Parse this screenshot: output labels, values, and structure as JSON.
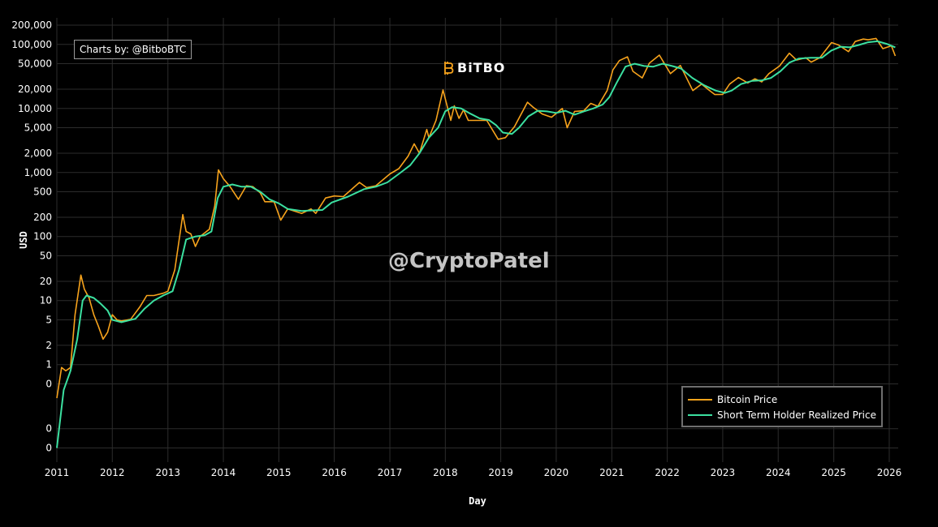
{
  "credit": "Charts by: @BitboBTC",
  "brand": "BiTBO",
  "watermark": "@CryptoPatel",
  "colors": {
    "bitcoin": "#f7a31c",
    "sth": "#3be0a0",
    "grid": "#2c2c2c",
    "background": "#000000"
  },
  "chart_data": {
    "type": "line",
    "xlabel": "Day",
    "ylabel": "USD",
    "yscale": "log",
    "grid": true,
    "legend_placement": "bottom-right",
    "x_ticks": [
      "2011",
      "2012",
      "2013",
      "2014",
      "2015",
      "2016",
      "2017",
      "2018",
      "2019",
      "2020",
      "2021",
      "2022",
      "2023",
      "2024",
      "2025",
      "2026"
    ],
    "y_ticks": [
      {
        "value": 0.05,
        "label": "0"
      },
      {
        "value": 0.1,
        "label": "0"
      },
      {
        "value": 0.5,
        "label": "0"
      },
      {
        "value": 1,
        "label": "1"
      },
      {
        "value": 2,
        "label": "2"
      },
      {
        "value": 5,
        "label": "5"
      },
      {
        "value": 10,
        "label": "10"
      },
      {
        "value": 20,
        "label": "20"
      },
      {
        "value": 50,
        "label": "50"
      },
      {
        "value": 100,
        "label": "100"
      },
      {
        "value": 200,
        "label": "200"
      },
      {
        "value": 500,
        "label": "500"
      },
      {
        "value": 1000,
        "label": "1,000"
      },
      {
        "value": 2000,
        "label": "2,000"
      },
      {
        "value": 5000,
        "label": "5,000"
      },
      {
        "value": 10000,
        "label": "10,000"
      },
      {
        "value": 20000,
        "label": "20,000"
      },
      {
        "value": 50000,
        "label": "50,000"
      },
      {
        "value": 100000,
        "label": "100,000"
      },
      {
        "value": 200000,
        "label": "200,000"
      }
    ],
    "xlim": [
      "2011-01-01",
      "2026-03-01"
    ],
    "series": [
      {
        "name": "Bitcoin Price",
        "color": "#f7a31c",
        "points": [
          [
            "2011-01-01",
            0.3
          ],
          [
            "2011-02-01",
            0.9
          ],
          [
            "2011-03-01",
            0.8
          ],
          [
            "2011-04-01",
            0.9
          ],
          [
            "2011-05-01",
            6
          ],
          [
            "2011-06-08",
            25
          ],
          [
            "2011-07-01",
            15
          ],
          [
            "2011-08-01",
            11
          ],
          [
            "2011-09-01",
            6
          ],
          [
            "2011-10-01",
            4
          ],
          [
            "2011-11-01",
            2.5
          ],
          [
            "2011-12-01",
            3.2
          ],
          [
            "2012-01-01",
            6
          ],
          [
            "2012-02-01",
            5
          ],
          [
            "2012-03-01",
            4.8
          ],
          [
            "2012-05-01",
            5.1
          ],
          [
            "2012-07-01",
            8
          ],
          [
            "2012-08-15",
            12
          ],
          [
            "2012-10-01",
            12
          ],
          [
            "2012-12-01",
            13
          ],
          [
            "2013-01-01",
            14
          ],
          [
            "2013-02-15",
            30
          ],
          [
            "2013-04-09",
            220
          ],
          [
            "2013-05-01",
            120
          ],
          [
            "2013-06-01",
            110
          ],
          [
            "2013-07-01",
            70
          ],
          [
            "2013-08-01",
            100
          ],
          [
            "2013-10-01",
            130
          ],
          [
            "2013-11-05",
            300
          ],
          [
            "2013-11-30",
            1100
          ],
          [
            "2014-01-01",
            800
          ],
          [
            "2014-02-15",
            600
          ],
          [
            "2014-04-10",
            380
          ],
          [
            "2014-06-01",
            620
          ],
          [
            "2014-07-15",
            600
          ],
          [
            "2014-09-01",
            480
          ],
          [
            "2014-10-01",
            350
          ],
          [
            "2014-12-01",
            350
          ],
          [
            "2015-01-14",
            180
          ],
          [
            "2015-03-01",
            270
          ],
          [
            "2015-06-01",
            230
          ],
          [
            "2015-08-01",
            270
          ],
          [
            "2015-09-01",
            230
          ],
          [
            "2015-11-05",
            400
          ],
          [
            "2016-01-01",
            430
          ],
          [
            "2016-03-01",
            420
          ],
          [
            "2016-06-15",
            700
          ],
          [
            "2016-08-01",
            580
          ],
          [
            "2016-10-01",
            620
          ],
          [
            "2017-01-01",
            950
          ],
          [
            "2017-03-01",
            1150
          ],
          [
            "2017-05-01",
            1800
          ],
          [
            "2017-06-10",
            2800
          ],
          [
            "2017-07-15",
            2000
          ],
          [
            "2017-09-01",
            4700
          ],
          [
            "2017-09-15",
            3500
          ],
          [
            "2017-11-01",
            6500
          ],
          [
            "2017-12-17",
            19500
          ],
          [
            "2018-02-06",
            6500
          ],
          [
            "2018-03-01",
            11000
          ],
          [
            "2018-04-01",
            7000
          ],
          [
            "2018-05-01",
            9500
          ],
          [
            "2018-06-01",
            6500
          ],
          [
            "2018-08-01",
            6500
          ],
          [
            "2018-10-01",
            6500
          ],
          [
            "2018-12-15",
            3300
          ],
          [
            "2019-02-01",
            3500
          ],
          [
            "2019-04-01",
            5200
          ],
          [
            "2019-06-26",
            12500
          ],
          [
            "2019-08-01",
            10500
          ],
          [
            "2019-10-01",
            8200
          ],
          [
            "2019-12-01",
            7300
          ],
          [
            "2020-02-10",
            10000
          ],
          [
            "2020-03-13",
            5000
          ],
          [
            "2020-05-01",
            9000
          ],
          [
            "2020-07-01",
            9200
          ],
          [
            "2020-08-15",
            12000
          ],
          [
            "2020-10-01",
            10800
          ],
          [
            "2020-12-01",
            19000
          ],
          [
            "2021-01-08",
            40000
          ],
          [
            "2021-02-20",
            56000
          ],
          [
            "2021-04-14",
            64000
          ],
          [
            "2021-05-20",
            38000
          ],
          [
            "2021-07-20",
            30000
          ],
          [
            "2021-09-05",
            51000
          ],
          [
            "2021-11-10",
            68000
          ],
          [
            "2022-01-22",
            35000
          ],
          [
            "2022-03-28",
            47000
          ],
          [
            "2022-06-18",
            19000
          ],
          [
            "2022-08-15",
            24000
          ],
          [
            "2022-10-01",
            19500
          ],
          [
            "2022-11-10",
            16500
          ],
          [
            "2023-01-01",
            16600
          ],
          [
            "2023-02-15",
            24000
          ],
          [
            "2023-04-14",
            30400
          ],
          [
            "2023-06-15",
            25000
          ],
          [
            "2023-08-01",
            29000
          ],
          [
            "2023-09-15",
            26000
          ],
          [
            "2023-11-01",
            35000
          ],
          [
            "2024-01-10",
            46000
          ],
          [
            "2024-03-14",
            73000
          ],
          [
            "2024-05-01",
            57000
          ],
          [
            "2024-07-01",
            62000
          ],
          [
            "2024-08-05",
            53000
          ],
          [
            "2024-10-01",
            62000
          ],
          [
            "2024-12-17",
            107000
          ],
          [
            "2025-02-01",
            98000
          ],
          [
            "2025-04-08",
            77000
          ],
          [
            "2025-05-22",
            111000
          ],
          [
            "2025-07-14",
            121000
          ],
          [
            "2025-08-15",
            118000
          ],
          [
            "2025-10-06",
            124000
          ],
          [
            "2025-11-20",
            86000
          ],
          [
            "2026-01-15",
            95000
          ],
          [
            "2026-02-10",
            66000
          ]
        ]
      },
      {
        "name": "Short Term Holder Realized Price",
        "color": "#3be0a0",
        "points": [
          [
            "2011-01-01",
            0.05
          ],
          [
            "2011-02-15",
            0.4
          ],
          [
            "2011-04-01",
            0.8
          ],
          [
            "2011-05-15",
            2.5
          ],
          [
            "2011-06-20",
            10
          ],
          [
            "2011-07-15",
            12
          ],
          [
            "2011-09-01",
            11
          ],
          [
            "2011-10-15",
            9
          ],
          [
            "2011-12-01",
            7
          ],
          [
            "2012-01-01",
            5
          ],
          [
            "2012-03-01",
            4.6
          ],
          [
            "2012-06-01",
            5.2
          ],
          [
            "2012-08-01",
            7.5
          ],
          [
            "2012-10-01",
            10
          ],
          [
            "2012-12-01",
            12
          ],
          [
            "2013-02-01",
            14
          ],
          [
            "2013-03-15",
            30
          ],
          [
            "2013-05-01",
            90
          ],
          [
            "2013-07-01",
            100
          ],
          [
            "2013-09-01",
            105
          ],
          [
            "2013-10-15",
            120
          ],
          [
            "2013-11-25",
            400
          ],
          [
            "2014-01-01",
            600
          ],
          [
            "2014-03-01",
            650
          ],
          [
            "2014-05-01",
            600
          ],
          [
            "2014-07-01",
            600
          ],
          [
            "2014-09-01",
            500
          ],
          [
            "2014-11-01",
            380
          ],
          [
            "2015-01-01",
            330
          ],
          [
            "2015-03-01",
            270
          ],
          [
            "2015-06-01",
            250
          ],
          [
            "2015-08-01",
            255
          ],
          [
            "2015-10-15",
            260
          ],
          [
            "2015-12-15",
            340
          ],
          [
            "2016-04-01",
            420
          ],
          [
            "2016-07-15",
            550
          ],
          [
            "2016-10-01",
            600
          ],
          [
            "2016-12-15",
            700
          ],
          [
            "2017-03-01",
            950
          ],
          [
            "2017-05-15",
            1300
          ],
          [
            "2017-07-15",
            2000
          ],
          [
            "2017-09-15",
            3500
          ],
          [
            "2017-11-15",
            5000
          ],
          [
            "2017-12-31",
            9000
          ],
          [
            "2018-02-15",
            10500
          ],
          [
            "2018-04-15",
            10000
          ],
          [
            "2018-06-15",
            8300
          ],
          [
            "2018-08-15",
            7000
          ],
          [
            "2018-10-15",
            6600
          ],
          [
            "2018-12-01",
            5500
          ],
          [
            "2019-01-15",
            4200
          ],
          [
            "2019-03-15",
            4000
          ],
          [
            "2019-05-01",
            5000
          ],
          [
            "2019-07-01",
            7500
          ],
          [
            "2019-09-01",
            9200
          ],
          [
            "2019-11-01",
            9000
          ],
          [
            "2020-01-01",
            8500
          ],
          [
            "2020-03-01",
            9200
          ],
          [
            "2020-05-01",
            8000
          ],
          [
            "2020-07-01",
            9000
          ],
          [
            "2020-09-01",
            10000
          ],
          [
            "2020-11-01",
            11500
          ],
          [
            "2020-12-15",
            15000
          ],
          [
            "2021-02-01",
            25000
          ],
          [
            "2021-04-01",
            45000
          ],
          [
            "2021-06-01",
            50000
          ],
          [
            "2021-08-01",
            46000
          ],
          [
            "2021-10-01",
            45000
          ],
          [
            "2021-12-01",
            50000
          ],
          [
            "2022-02-01",
            46000
          ],
          [
            "2022-04-01",
            42000
          ],
          [
            "2022-06-15",
            30000
          ],
          [
            "2022-09-01",
            23000
          ],
          [
            "2022-11-15",
            19000
          ],
          [
            "2023-01-15",
            17500
          ],
          [
            "2023-03-01",
            19000
          ],
          [
            "2023-05-01",
            24000
          ],
          [
            "2023-07-15",
            27000
          ],
          [
            "2023-09-15",
            27500
          ],
          [
            "2023-11-15",
            30000
          ],
          [
            "2024-01-15",
            38000
          ],
          [
            "2024-03-15",
            52000
          ],
          [
            "2024-05-15",
            60000
          ],
          [
            "2024-08-01",
            62000
          ],
          [
            "2024-10-15",
            62000
          ],
          [
            "2024-12-15",
            80000
          ],
          [
            "2025-02-15",
            92000
          ],
          [
            "2025-04-15",
            90000
          ],
          [
            "2025-06-15",
            98000
          ],
          [
            "2025-08-15",
            108000
          ],
          [
            "2025-10-15",
            112000
          ],
          [
            "2025-12-15",
            102000
          ],
          [
            "2026-02-10",
            90000
          ]
        ]
      }
    ]
  }
}
